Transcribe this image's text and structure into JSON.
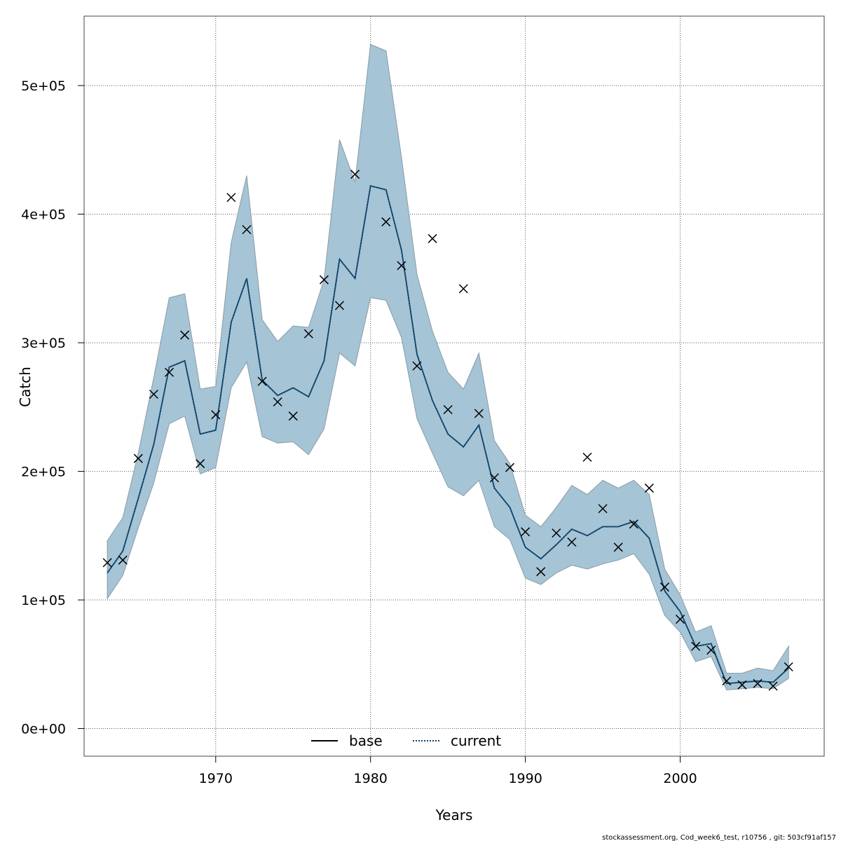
{
  "chart_data": {
    "type": "line",
    "xlabel": "Years",
    "ylabel": "Catch",
    "xlim": [
      1961.5,
      2009.3
    ],
    "ylim": [
      -21500,
      554000
    ],
    "xticks": [
      1970,
      1980,
      1990,
      2000
    ],
    "yticks": [
      0,
      100000,
      200000,
      300000,
      400000,
      500000
    ],
    "ytick_labels": [
      "0e+00",
      "1e+05",
      "2e+05",
      "3e+05",
      "4e+05",
      "5e+05"
    ],
    "grid": true,
    "legend_placement": "bottom-center",
    "colors": {
      "band_fill": "#a5c4d6",
      "band_edge": "#8a9ba6",
      "estimate_line": "#0b3f66",
      "observed_marker": "#000000",
      "grid": "#555555"
    },
    "x": [
      1963,
      1964,
      1965,
      1966,
      1967,
      1968,
      1969,
      1970,
      1971,
      1972,
      1973,
      1974,
      1975,
      1976,
      1977,
      1978,
      1979,
      1980,
      1981,
      1982,
      1983,
      1984,
      1985,
      1986,
      1987,
      1988,
      1989,
      1990,
      1991,
      1992,
      1993,
      1994,
      1995,
      1996,
      1997,
      1998,
      1999,
      2000,
      2001,
      2002,
      2003,
      2004,
      2005,
      2006,
      2007
    ],
    "series": [
      {
        "name": "base",
        "style": "solid",
        "values": [
          121000,
          138000,
          179000,
          221000,
          281000,
          286000,
          229000,
          232000,
          316000,
          350000,
          271000,
          259000,
          265000,
          258000,
          286000,
          365000,
          350000,
          422000,
          419000,
          372000,
          291000,
          255000,
          229000,
          219000,
          236000,
          187000,
          172000,
          141000,
          132000,
          143000,
          155000,
          150000,
          157000,
          157000,
          161000,
          148000,
          107000,
          91000,
          64000,
          66000,
          35000,
          36000,
          37000,
          36000,
          47000
        ]
      },
      {
        "name": "current",
        "style": "dotted",
        "values": [
          121000,
          138000,
          179000,
          221000,
          281000,
          286000,
          229000,
          232000,
          316000,
          350000,
          271000,
          259000,
          265000,
          258000,
          286000,
          365000,
          350000,
          422000,
          419000,
          372000,
          291000,
          255000,
          229000,
          219000,
          236000,
          187000,
          172000,
          141000,
          132000,
          143000,
          155000,
          150000,
          157000,
          157000,
          161000,
          148000,
          107000,
          91000,
          64000,
          66000,
          35000,
          36000,
          37000,
          36000,
          47000
        ]
      }
    ],
    "band_upper": [
      146000,
      164000,
      214000,
      273000,
      335000,
      338000,
      264000,
      266000,
      378000,
      430000,
      318000,
      301000,
      313000,
      312000,
      349000,
      458000,
      425000,
      532000,
      527000,
      444000,
      353000,
      309000,
      277000,
      264000,
      292000,
      224000,
      206000,
      166000,
      157000,
      172000,
      189000,
      182000,
      193000,
      187000,
      193000,
      182000,
      124000,
      104000,
      75000,
      80000,
      43000,
      43000,
      47000,
      45000,
      64000
    ],
    "band_lower": [
      101000,
      119000,
      156000,
      191000,
      237000,
      243000,
      198000,
      203000,
      265000,
      285000,
      227000,
      222000,
      223000,
      213000,
      233000,
      292000,
      282000,
      335000,
      333000,
      304000,
      241000,
      214000,
      188000,
      181000,
      193000,
      157000,
      147000,
      117000,
      112000,
      121000,
      127000,
      124000,
      128000,
      131000,
      136000,
      120000,
      88000,
      75000,
      52000,
      56000,
      30000,
      31000,
      32000,
      31000,
      39000
    ],
    "observed": [
      129000,
      131000,
      210000,
      260000,
      277000,
      306000,
      206000,
      244000,
      413000,
      388000,
      270000,
      254000,
      243000,
      307000,
      349000,
      329000,
      431000,
      null,
      394000,
      360000,
      282000,
      381000,
      248000,
      342000,
      245000,
      195000,
      203000,
      153000,
      122000,
      152000,
      145000,
      211000,
      171000,
      141000,
      159000,
      187000,
      110000,
      85000,
      64000,
      61000,
      37000,
      34000,
      35000,
      33000,
      48000
    ],
    "legend": [
      {
        "label": "base",
        "style": "solid"
      },
      {
        "label": "current",
        "style": "dotted"
      }
    ]
  },
  "footer": "stockassessment.org, Cod_week6_test, r10756 , git: 503cf91af157"
}
